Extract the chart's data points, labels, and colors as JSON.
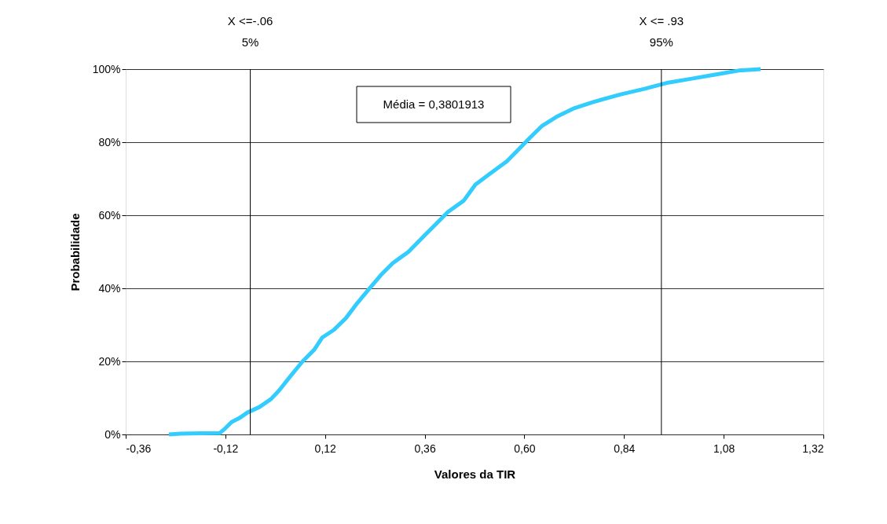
{
  "chart_data": {
    "type": "line",
    "xlabel": "Valores da TIR",
    "ylabel": "Probabilidade",
    "x": [
      -0.256,
      -0.228,
      -0.133,
      -0.12,
      -0.105,
      -0.086,
      -0.067,
      -0.038,
      -0.01,
      0.009,
      0.037,
      0.066,
      0.094,
      0.113,
      0.141,
      0.17,
      0.198,
      0.226,
      0.255,
      0.283,
      0.321,
      0.359,
      0.387,
      0.416,
      0.454,
      0.482,
      0.52,
      0.558,
      0.586,
      0.614,
      0.643,
      0.68,
      0.718,
      0.766,
      0.832,
      0.889,
      0.946,
      1.003,
      1.059,
      1.116,
      1.169
    ],
    "series": [
      {
        "color": "#33ccff",
        "values": [
          0,
          0.2,
          0.4,
          1.7,
          3.4,
          4.5,
          6,
          7.5,
          9.7,
          12,
          16,
          20,
          23.2,
          26.5,
          28.6,
          31.8,
          36,
          39.8,
          43.7,
          46.9,
          50,
          54.4,
          57.6,
          60.9,
          64,
          68.4,
          71.6,
          74.8,
          78,
          81.3,
          84.5,
          87.1,
          89.2,
          91,
          93.1,
          94.6,
          96.3,
          97.4,
          98.5,
          99.6,
          100
        ]
      }
    ],
    "xlim": [
      -0.36,
      1.32
    ],
    "xticks": [
      {
        "value": -0.36,
        "label": "-0,36"
      },
      {
        "value": -0.12,
        "label": "-0,12"
      },
      {
        "value": 0.12,
        "label": "0,12"
      },
      {
        "value": 0.36,
        "label": "0,36"
      },
      {
        "value": 0.6,
        "label": "0,60"
      },
      {
        "value": 0.84,
        "label": "0,84"
      },
      {
        "value": 1.08,
        "label": "1,08"
      },
      {
        "value": 1.32,
        "label": "1,32"
      }
    ],
    "ylim": [
      0,
      100
    ],
    "yticks": [
      {
        "value": 0,
        "label": "0%"
      },
      {
        "value": 20,
        "label": "20%"
      },
      {
        "value": 40,
        "label": "40%"
      },
      {
        "value": 60,
        "label": "60%"
      },
      {
        "value": 80,
        "label": "80%"
      },
      {
        "value": 100,
        "label": "100%"
      }
    ],
    "ref_lines": [
      {
        "axis": "x",
        "value": -0.06,
        "label": "X <=-.06\n5%"
      },
      {
        "axis": "x",
        "value": 0.93,
        "label": "X <= .93\n95%"
      }
    ],
    "annotations": [
      "Média = 0,3801913"
    ],
    "grid": "y",
    "legend": false,
    "marker": "none",
    "line_style": "solid"
  }
}
